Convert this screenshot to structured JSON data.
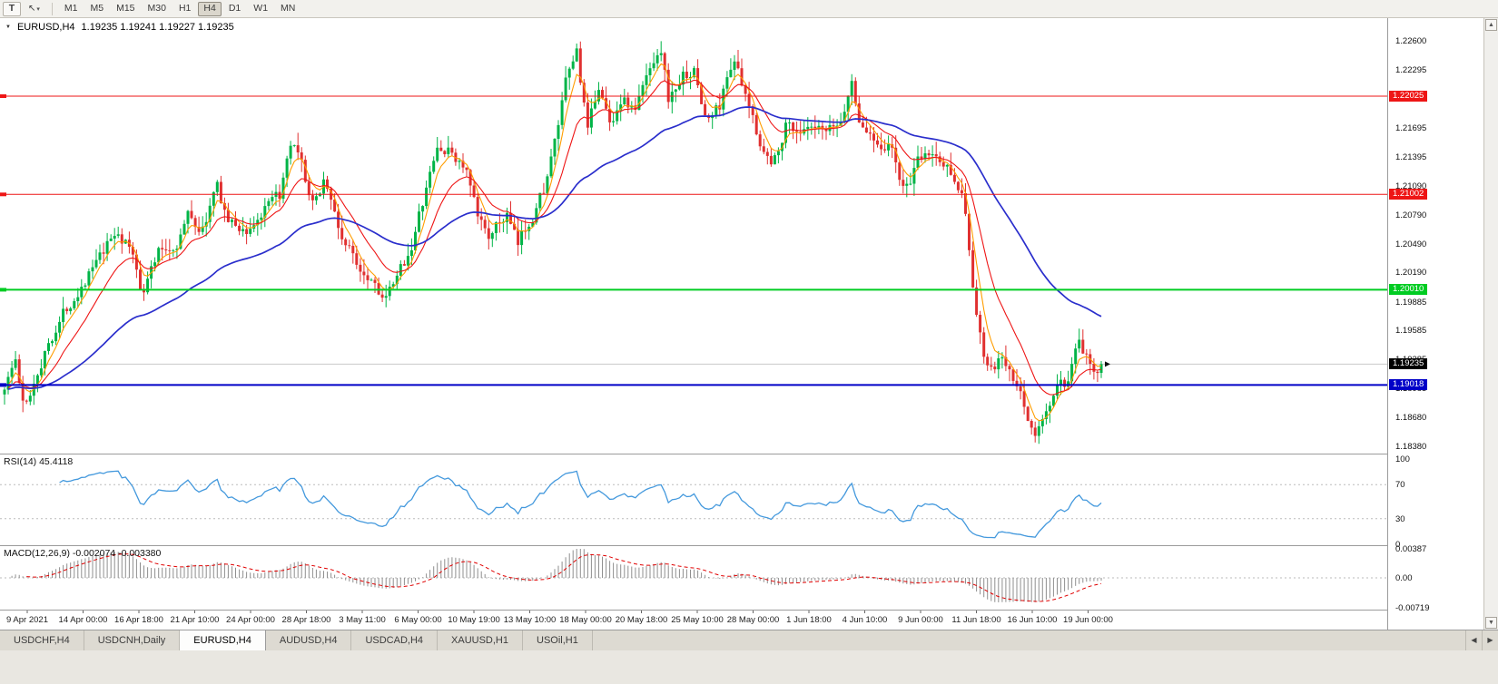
{
  "toolbar": {
    "t_button_label": "T",
    "cursor_icon": "↖",
    "cursor_caret": "▾",
    "timeframes": [
      {
        "label": "M1",
        "active": false
      },
      {
        "label": "M5",
        "active": false
      },
      {
        "label": "M15",
        "active": false
      },
      {
        "label": "M30",
        "active": false
      },
      {
        "label": "H1",
        "active": false
      },
      {
        "label": "H4",
        "active": true
      },
      {
        "label": "D1",
        "active": false
      },
      {
        "label": "W1",
        "active": false
      },
      {
        "label": "MN",
        "active": false
      }
    ]
  },
  "chart": {
    "expander_icon": "▼",
    "title_symbol": "EURUSD,H4",
    "title_ohlc": "1.19235 1.19241 1.19227 1.19235",
    "price_scale_labels": [
      "1.22600",
      "1.22295",
      "1.21995",
      "1.21695",
      "1.21395",
      "1.21090",
      "1.20790",
      "1.20490",
      "1.20190",
      "1.19885",
      "1.19585",
      "1.19285",
      "1.18985",
      "1.18680",
      "1.18380"
    ],
    "levels": [
      {
        "value": 1.22025,
        "label": "1.22025",
        "color": "#ee1515",
        "width": 1
      },
      {
        "value": 1.21002,
        "label": "1.21002",
        "color": "#ee1515",
        "width": 1
      },
      {
        "value": 1.2001,
        "label": "1.20010",
        "color": "#00cc22",
        "width": 2
      },
      {
        "value": 1.19018,
        "label": "1.19018",
        "color": "#0000c8",
        "width": 2
      }
    ],
    "current_price": {
      "value": 1.19235,
      "label": "1.19235",
      "color": "#000000"
    },
    "time_labels": [
      "9 Apr 2021",
      "14 Apr 00:00",
      "16 Apr 18:00",
      "21 Apr 10:00",
      "24 Apr 00:00",
      "28 Apr 18:00",
      "3 May 11:00",
      "6 May 00:00",
      "10 May 19:00",
      "13 May 10:00",
      "18 May 00:00",
      "20 May 18:00",
      "25 May 10:00",
      "28 May 00:00",
      "1 Jun 18:00",
      "4 Jun 10:00",
      "9 Jun 00:00",
      "11 Jun 18:00",
      "16 Jun 10:00",
      "19 Jun 00:00"
    ]
  },
  "rsi_panel": {
    "label": "RSI(14) 45.4118",
    "scale_labels": [
      "100",
      "70",
      "30",
      "0"
    ],
    "levels": [
      70,
      30
    ],
    "range": [
      0,
      100
    ]
  },
  "macd_panel": {
    "label": "MACD(12,26,9) -0.002074 -0.003380",
    "scale_labels": [
      "0.00387",
      "0.00",
      "-0.00719"
    ],
    "range": [
      -0.00719,
      0.00387
    ]
  },
  "tabs": {
    "items": [
      {
        "label": "USDCHF,H4",
        "active": false
      },
      {
        "label": "USDCNH,Daily",
        "active": false
      },
      {
        "label": "EURUSD,H4",
        "active": true
      },
      {
        "label": "AUDUSD,H4",
        "active": false
      },
      {
        "label": "USDCAD,H4",
        "active": false
      },
      {
        "label": "XAUUSD,H1",
        "active": false
      },
      {
        "label": "USOil,H1",
        "active": false
      }
    ],
    "scroll_left": "◀",
    "scroll_right": "▶"
  },
  "scrollbar": {
    "up": "▲",
    "down": "▼"
  },
  "chart_data": {
    "type": "candlestick",
    "symbol": "EURUSD",
    "timeframe": "H4",
    "num_candles": 300,
    "price_range_top": 1.22837,
    "price_range_bottom": 1.18304,
    "candle_colors": {
      "bull": "#00b447",
      "bear": "#e03030"
    },
    "indicators": {
      "ma_fast": {
        "period": 5,
        "color": "#ff9d00"
      },
      "ma_mid": {
        "period": 14,
        "color": "#ee1515"
      },
      "ma_slow": {
        "period": 55,
        "color": "#2a2ecc"
      },
      "rsi": {
        "period": 14,
        "value": 45.4118,
        "color": "#4499dd"
      },
      "macd": {
        "fast": 12,
        "slow": 26,
        "signal": 9,
        "macd_value": -0.002074,
        "signal_value": -0.00338,
        "hist_color": "#8f8f8f",
        "signal_color": "#e00000"
      }
    },
    "price_anchors": [
      [
        0.0,
        1.1902
      ],
      [
        0.01,
        1.1928
      ],
      [
        0.018,
        1.1872
      ],
      [
        0.03,
        1.1918
      ],
      [
        0.045,
        1.196
      ],
      [
        0.06,
        1.199
      ],
      [
        0.075,
        1.2018
      ],
      [
        0.09,
        1.2035
      ],
      [
        0.103,
        1.2062
      ],
      [
        0.115,
        1.2042
      ],
      [
        0.125,
        1.2002
      ],
      [
        0.14,
        1.204
      ],
      [
        0.155,
        1.2046
      ],
      [
        0.168,
        1.208
      ],
      [
        0.18,
        1.2062
      ],
      [
        0.193,
        1.2108
      ],
      [
        0.205,
        1.207
      ],
      [
        0.22,
        1.2062
      ],
      [
        0.235,
        1.208
      ],
      [
        0.25,
        1.2092
      ],
      [
        0.262,
        1.2148
      ],
      [
        0.272,
        1.212
      ],
      [
        0.282,
        1.2082
      ],
      [
        0.292,
        1.212
      ],
      [
        0.305,
        1.2062
      ],
      [
        0.32,
        1.203
      ],
      [
        0.335,
        1.2018
      ],
      [
        0.348,
        1.1992
      ],
      [
        0.358,
        1.2008
      ],
      [
        0.372,
        1.2052
      ],
      [
        0.385,
        1.2105
      ],
      [
        0.395,
        1.2148
      ],
      [
        0.408,
        1.2142
      ],
      [
        0.42,
        1.2128
      ],
      [
        0.432,
        1.2068
      ],
      [
        0.445,
        1.2058
      ],
      [
        0.458,
        1.2078
      ],
      [
        0.468,
        1.2042
      ],
      [
        0.48,
        1.2078
      ],
      [
        0.492,
        1.2108
      ],
      [
        0.502,
        1.2152
      ],
      [
        0.512,
        1.2212
      ],
      [
        0.522,
        1.2248
      ],
      [
        0.532,
        1.216
      ],
      [
        0.542,
        1.2216
      ],
      [
        0.552,
        1.2172
      ],
      [
        0.562,
        1.2202
      ],
      [
        0.575,
        1.2188
      ],
      [
        0.588,
        1.2228
      ],
      [
        0.598,
        1.2262
      ],
      [
        0.606,
        1.2198
      ],
      [
        0.616,
        1.222
      ],
      [
        0.628,
        1.2232
      ],
      [
        0.64,
        1.2176
      ],
      [
        0.652,
        1.2192
      ],
      [
        0.665,
        1.2248
      ],
      [
        0.675,
        1.2198
      ],
      [
        0.688,
        1.216
      ],
      [
        0.7,
        1.2128
      ],
      [
        0.712,
        1.2175
      ],
      [
        0.725,
        1.2168
      ],
      [
        0.738,
        1.2162
      ],
      [
        0.75,
        1.2158
      ],
      [
        0.762,
        1.2172
      ],
      [
        0.772,
        1.2218
      ],
      [
        0.782,
        1.2168
      ],
      [
        0.795,
        1.216
      ],
      [
        0.808,
        1.2152
      ],
      [
        0.82,
        1.2102
      ],
      [
        0.832,
        1.2128
      ],
      [
        0.845,
        1.2142
      ],
      [
        0.858,
        1.2128
      ],
      [
        0.868,
        1.2122
      ],
      [
        0.876,
        1.2088
      ],
      [
        0.884,
        1.1992
      ],
      [
        0.892,
        1.1932
      ],
      [
        0.9,
        1.1912
      ],
      [
        0.91,
        1.1928
      ],
      [
        0.92,
        1.1902
      ],
      [
        0.93,
        1.1878
      ],
      [
        0.94,
        1.1848
      ],
      [
        0.95,
        1.1872
      ],
      [
        0.96,
        1.1902
      ],
      [
        0.97,
        1.1898
      ],
      [
        0.98,
        1.1942
      ],
      [
        0.99,
        1.1918
      ],
      [
        1.0,
        1.19235
      ]
    ]
  }
}
